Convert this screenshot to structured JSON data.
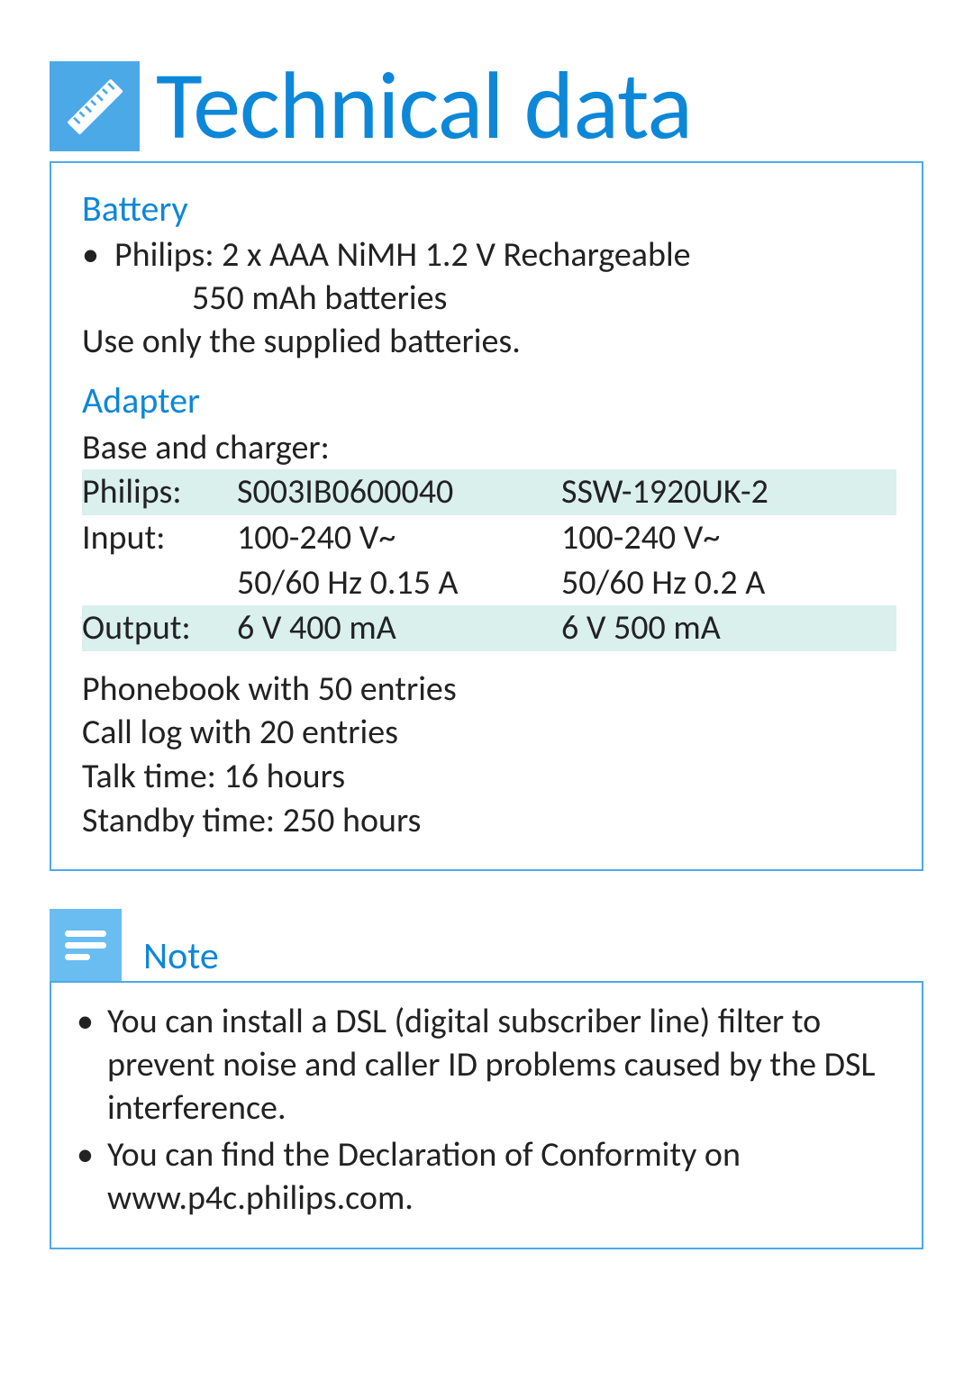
{
  "title": "Technical data",
  "colors": {
    "brand_blue": "#0d87d8",
    "icon_bg": "#4ca9e8",
    "note_icon_bg": "#6abdf0",
    "row_tint": "#d9f0ed",
    "text": "#222222"
  },
  "battery": {
    "heading": "Battery",
    "bullet_line1": "Philips:  2 x AAA NiMH 1.2 V Rechargeable",
    "bullet_line2": "550 mAh batteries",
    "warning": "Use only the supplied batteries."
  },
  "adapter": {
    "heading": "Adapter",
    "subheading": "Base and charger:",
    "rows": [
      {
        "label": "Philips:",
        "a": "S003IB0600040",
        "b": "SSW-1920UK-2",
        "tint": true
      },
      {
        "label": "Input:",
        "a": "100-240 V~",
        "b": "100-240 V~",
        "tint": false
      },
      {
        "label": "",
        "a": "50/60 Hz 0.15 A",
        "b": "50/60 Hz 0.2 A",
        "tint": false
      },
      {
        "label": "Output:",
        "a": "6 V 400 mA",
        "b": "6 V 500 mA",
        "tint": true
      }
    ]
  },
  "specs": {
    "phonebook": "Phonebook with 50 entries",
    "calllog": "Call log with 20 entries",
    "talktime": "Talk time: 16 hours",
    "standby": "Standby time: 250 hours"
  },
  "note": {
    "heading": "Note",
    "items": [
      "You can install a DSL (digital subscriber line) filter to prevent noise and caller ID problems caused by the DSL interference.",
      "You can find the Declaration of Conformity on www.p4c.philips.com."
    ]
  }
}
